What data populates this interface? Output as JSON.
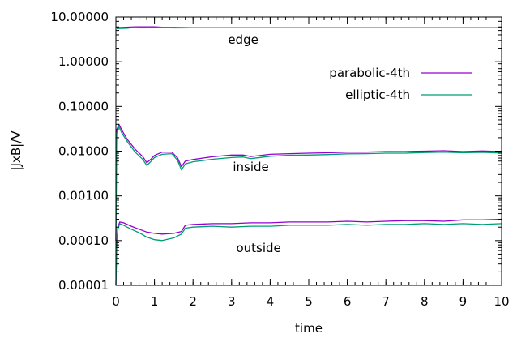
{
  "chart_data": {
    "type": "line",
    "title": "",
    "xlabel": "time",
    "ylabel": "|JxB|/V",
    "xlim": [
      0,
      10
    ],
    "ylim": [
      1e-05,
      10
    ],
    "yscale": "log",
    "grid": false,
    "legend_position": "top-right",
    "x_ticks": [
      0,
      1,
      2,
      3,
      4,
      5,
      6,
      7,
      8,
      9,
      10
    ],
    "x_tick_labels": [
      "0",
      "1",
      "2",
      "3",
      "4",
      "5",
      "6",
      "7",
      "8",
      "9",
      "10"
    ],
    "y_ticks": [
      1e-05,
      0.0001,
      0.001,
      0.01,
      0.1,
      1,
      10
    ],
    "y_tick_labels": [
      "0.00001",
      "0.00010",
      "0.00100",
      "0.01000",
      "0.10000",
      "1.00000",
      "10.00000"
    ],
    "annotations": [
      {
        "text": "edge",
        "x": 3.3,
        "y": 3.1
      },
      {
        "text": "inside",
        "x": 3.5,
        "y": 0.0044
      },
      {
        "text": "outside",
        "x": 3.7,
        "y": 6.8e-05
      }
    ],
    "series": [
      {
        "name": "parabolic-4th",
        "color": "#9400d3",
        "groups": [
          {
            "label": "edge",
            "x": [
              0.02,
              0.5,
              1.0,
              1.2,
              2,
              3,
              4,
              5,
              6,
              7,
              8,
              9,
              10
            ],
            "y": [
              5.8,
              6.0,
              6.0,
              5.9,
              5.8,
              5.8,
              5.8,
              5.8,
              5.8,
              5.8,
              5.8,
              5.8,
              5.8
            ]
          },
          {
            "label": "inside",
            "x": [
              0,
              0.02,
              0.08,
              0.15,
              0.3,
              0.5,
              0.7,
              0.8,
              0.9,
              1.0,
              1.2,
              1.45,
              1.6,
              1.7,
              1.8,
              2.0,
              2.5,
              3.0,
              3.3,
              3.5,
              4,
              4.5,
              5,
              5.5,
              6,
              6.5,
              7,
              7.5,
              8,
              8.5,
              9,
              9.5,
              10
            ],
            "y": [
              0.0001,
              0.03,
              0.04,
              0.03,
              0.018,
              0.011,
              0.0075,
              0.0055,
              0.0065,
              0.008,
              0.0095,
              0.0095,
              0.007,
              0.0045,
              0.006,
              0.0065,
              0.0075,
              0.0082,
              0.0082,
              0.0076,
              0.0085,
              0.0088,
              0.009,
              0.0092,
              0.0095,
              0.0095,
              0.0098,
              0.0098,
              0.01,
              0.0102,
              0.0098,
              0.0101,
              0.0098
            ]
          },
          {
            "label": "outside",
            "x": [
              0,
              0.02,
              0.05,
              0.1,
              0.2,
              0.4,
              0.6,
              0.8,
              1.0,
              1.2,
              1.5,
              1.7,
              1.8,
              2.0,
              2.5,
              3,
              3.5,
              4,
              4.5,
              5,
              5.5,
              6,
              6.5,
              7,
              7.5,
              8,
              8.5,
              9,
              9.5,
              10
            ],
            "y": [
              1e-05,
              8e-05,
              0.0002,
              0.00026,
              0.00025,
              0.00021,
              0.00018,
              0.000155,
              0.000145,
              0.00014,
              0.000145,
              0.00016,
              0.00022,
              0.00023,
              0.00024,
              0.00024,
              0.00025,
              0.00025,
              0.00026,
              0.00026,
              0.00026,
              0.00027,
              0.00026,
              0.00027,
              0.00028,
              0.00028,
              0.00027,
              0.00029,
              0.00029,
              0.0003
            ]
          }
        ]
      },
      {
        "name": "elliptic-4th",
        "color": "#009e73",
        "groups": [
          {
            "label": "edge",
            "x": [
              0.02,
              0.3,
              0.5,
              0.7,
              1.0,
              1.2,
              1.5,
              2,
              3,
              4,
              5,
              6,
              7,
              8,
              9,
              10
            ],
            "y": [
              5.5,
              5.6,
              5.9,
              5.7,
              5.8,
              5.9,
              5.7,
              5.75,
              5.75,
              5.75,
              5.75,
              5.75,
              5.75,
              5.75,
              5.75,
              5.75
            ]
          },
          {
            "label": "inside",
            "x": [
              0,
              0.02,
              0.08,
              0.15,
              0.3,
              0.5,
              0.7,
              0.8,
              0.9,
              1.0,
              1.2,
              1.45,
              1.6,
              1.7,
              1.8,
              2.0,
              2.5,
              3.0,
              3.3,
              3.5,
              4,
              4.5,
              5,
              5.5,
              6,
              6.5,
              7,
              7.5,
              8,
              8.5,
              9,
              9.5,
              10
            ],
            "y": [
              0.0001,
              0.025,
              0.035,
              0.026,
              0.016,
              0.0095,
              0.0065,
              0.0048,
              0.0058,
              0.0072,
              0.0085,
              0.0088,
              0.0062,
              0.0038,
              0.0052,
              0.0058,
              0.0066,
              0.0072,
              0.0074,
              0.0068,
              0.0077,
              0.0081,
              0.0082,
              0.0084,
              0.0087,
              0.0088,
              0.009,
              0.009,
              0.0093,
              0.0095,
              0.0092,
              0.0094,
              0.0091
            ]
          },
          {
            "label": "outside",
            "x": [
              0,
              0.02,
              0.05,
              0.1,
              0.2,
              0.4,
              0.6,
              0.8,
              1.0,
              1.2,
              1.5,
              1.7,
              1.8,
              2.0,
              2.5,
              3,
              3.5,
              4,
              4.5,
              5,
              5.5,
              6,
              6.5,
              7,
              7.5,
              8,
              8.5,
              9,
              9.5,
              10
            ],
            "y": [
              1e-05,
              7e-05,
              0.00018,
              0.00024,
              0.00022,
              0.00018,
              0.00015,
              0.00012,
              0.000105,
              0.0001,
              0.000115,
              0.00014,
              0.00019,
              0.0002,
              0.00021,
              0.0002,
              0.00021,
              0.00021,
              0.00022,
              0.00022,
              0.00022,
              0.00023,
              0.00022,
              0.00023,
              0.00023,
              0.00024,
              0.00023,
              0.00024,
              0.00023,
              0.00024
            ]
          }
        ]
      }
    ]
  }
}
